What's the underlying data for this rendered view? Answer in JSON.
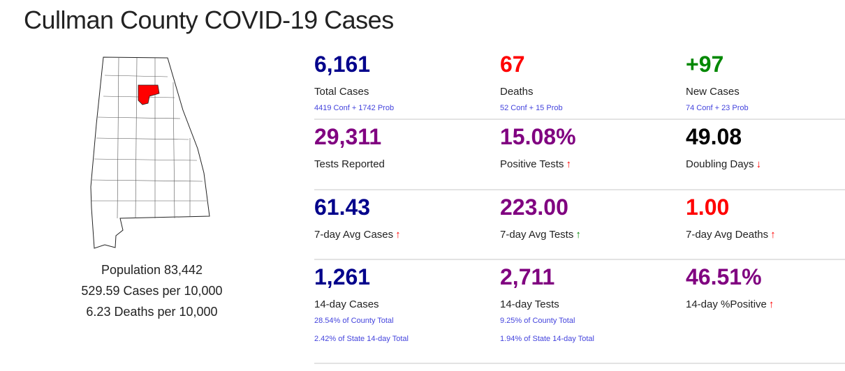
{
  "title": "Cullman County COVID-19 Cases",
  "highlight_color": "#ff0000",
  "left": {
    "population": "Population 83,442",
    "cases_per": "529.59 Cases per 10,000",
    "deaths_per": "6.23 Deaths per 10,000"
  },
  "rows": [
    [
      {
        "value": "6,161",
        "color": "#00008b",
        "label": "Total Cases",
        "subs": [
          "4419 Conf + 1742 Prob"
        ]
      },
      {
        "value": "67",
        "color": "#ff0000",
        "label": "Deaths",
        "subs": [
          "52 Conf + 15 Prob"
        ]
      },
      {
        "value": "+97",
        "color": "#008800",
        "label": "New Cases",
        "subs": [
          "74 Conf + 23 Prob"
        ]
      }
    ],
    [
      {
        "value": "29,311",
        "color": "#800080",
        "label": "Tests Reported"
      },
      {
        "value": "15.08%",
        "color": "#800080",
        "label": "Positive Tests",
        "arrow": "↑",
        "arrow_color": "#ff0000"
      },
      {
        "value": "49.08",
        "color": "#000000",
        "label": "Doubling Days",
        "arrow": "↓",
        "arrow_color": "#ff0000"
      }
    ],
    [
      {
        "value": "61.43",
        "color": "#00008b",
        "label": "7-day Avg Cases",
        "arrow": "↑",
        "arrow_color": "#ff0000"
      },
      {
        "value": "223.00",
        "color": "#800080",
        "label": "7-day Avg Tests",
        "arrow": "↑",
        "arrow_color": "#008800"
      },
      {
        "value": "1.00",
        "color": "#ff0000",
        "label": "7-day Avg Deaths",
        "arrow": "↑",
        "arrow_color": "#ff0000"
      }
    ],
    [
      {
        "value": "1,261",
        "color": "#00008b",
        "label": "14-day Cases",
        "subs": [
          "28.54% of County Total",
          "2.42% of State 14-day Total"
        ]
      },
      {
        "value": "2,711",
        "color": "#800080",
        "label": "14-day Tests",
        "subs": [
          "9.25% of County Total",
          "1.94% of State 14-day Total"
        ]
      },
      {
        "value": "46.51%",
        "color": "#800080",
        "label": "14-day %Positive",
        "arrow": "↑",
        "arrow_color": "#ff0000"
      }
    ]
  ]
}
